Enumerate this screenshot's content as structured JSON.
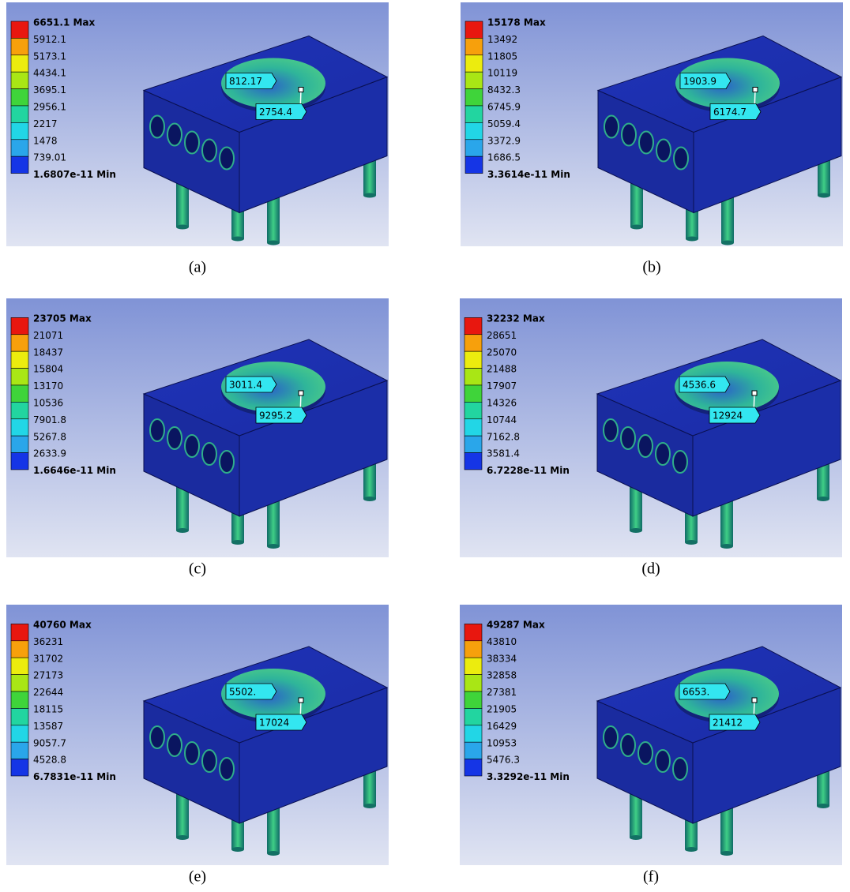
{
  "panels": [
    {
      "legend": [
        "6651.1 Max",
        "5912.1",
        "5173.1",
        "4434.1",
        "3695.1",
        "2956.1",
        "2217",
        "1478",
        "739.01",
        "1.6807e-11 Min"
      ],
      "probes": [
        "812.17",
        "2754.4"
      ],
      "caption": "(a)"
    },
    {
      "legend": [
        "15178 Max",
        "13492",
        "11805",
        "10119",
        "8432.3",
        "6745.9",
        "5059.4",
        "3372.9",
        "1686.5",
        "3.3614e-11 Min"
      ],
      "probes": [
        "1903.9",
        "6174.7"
      ],
      "caption": "(b)"
    },
    {
      "legend": [
        "23705 Max",
        "21071",
        "18437",
        "15804",
        "13170",
        "10536",
        "7901.8",
        "5267.8",
        "2633.9",
        "1.6646e-11 Min"
      ],
      "probes": [
        "3011.4",
        "9295.2"
      ],
      "caption": "(c)"
    },
    {
      "legend": [
        "32232 Max",
        "28651",
        "25070",
        "21488",
        "17907",
        "14326",
        "10744",
        "7162.8",
        "3581.4",
        "6.7228e-11 Min"
      ],
      "probes": [
        "4536.6",
        "12924"
      ],
      "caption": "(d)"
    },
    {
      "legend": [
        "40760 Max",
        "36231",
        "31702",
        "27173",
        "22644",
        "18115",
        "13587",
        "9057.7",
        "4528.8",
        "6.7831e-11 Min"
      ],
      "probes": [
        "5502.",
        "17024"
      ],
      "caption": "(e)"
    },
    {
      "legend": [
        "49287 Max",
        "43810",
        "38334",
        "32858",
        "27381",
        "21905",
        "16429",
        "10953",
        "5476.3",
        "3.3292e-11 Min"
      ],
      "probes": [
        "6653.",
        "21412"
      ],
      "caption": "(f)"
    }
  ]
}
